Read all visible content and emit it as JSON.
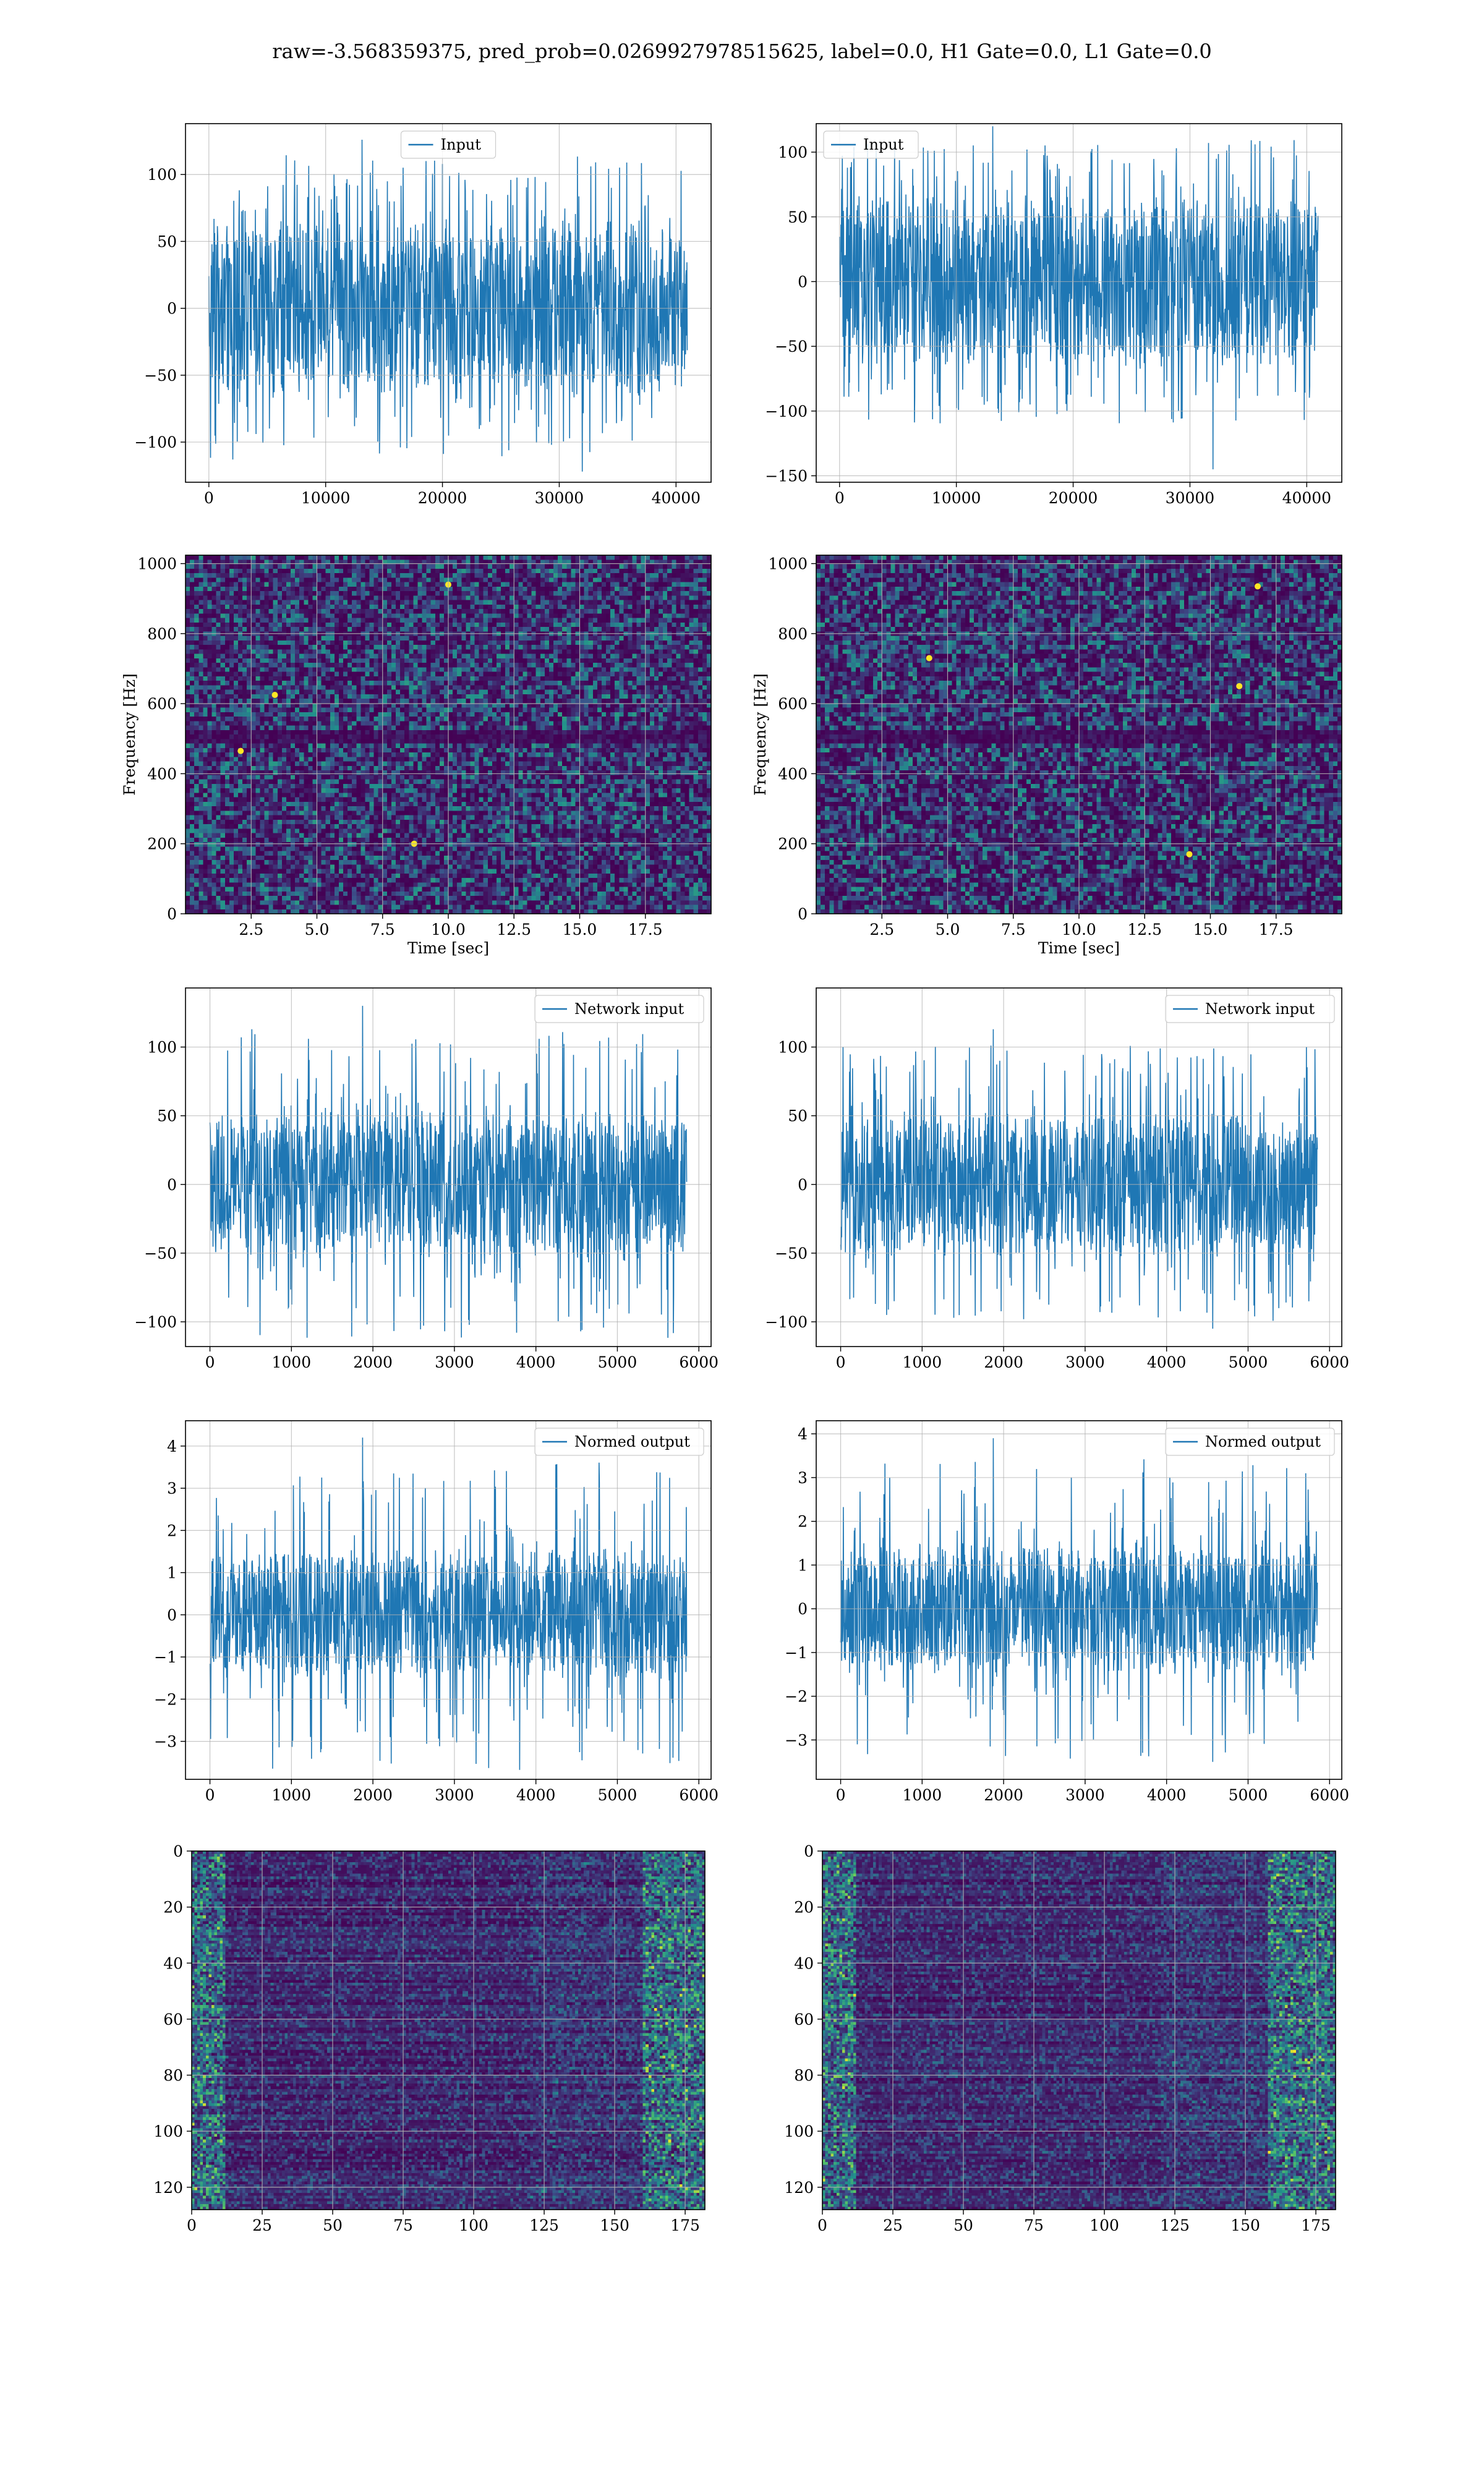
{
  "figure_title": "raw=-3.568359375, pred_prob=0.0269927978515625, label=0.0, H1 Gate=0.0, L1 Gate=0.0",
  "colors": {
    "line": "#1f77b4",
    "grid": "#b0b0b0",
    "viridis_low": "#440154",
    "viridis_mid": "#21918c",
    "viridis_high": "#fde725"
  },
  "chart_data": [
    {
      "type": "line",
      "id": "input-h1",
      "legend": "Input",
      "legend_loc": "upper center",
      "xlabel": "",
      "ylabel": "",
      "xlim": [
        -2000,
        43000
      ],
      "ylim": [
        -130,
        138
      ],
      "n_points": 40960,
      "xticks": [
        0,
        10000,
        20000,
        30000,
        40000
      ],
      "yticks": [
        -100,
        -50,
        0,
        50,
        100
      ],
      "envelope": {
        "typical": [
          -70,
          70
        ],
        "max": 126,
        "min": -122
      }
    },
    {
      "type": "line",
      "id": "input-l1",
      "legend": "Input",
      "legend_loc": "upper left",
      "xlabel": "",
      "ylabel": "",
      "xlim": [
        -2000,
        43000
      ],
      "ylim": [
        -155,
        122
      ],
      "n_points": 40960,
      "xticks": [
        0,
        10000,
        20000,
        30000,
        40000
      ],
      "yticks": [
        -150,
        -100,
        -50,
        0,
        50,
        100
      ],
      "envelope": {
        "typical": [
          -70,
          70
        ],
        "max": 120,
        "min": -145
      }
    },
    {
      "type": "heatmap",
      "id": "spectrogram-h1",
      "xlabel": "Time [sec]",
      "ylabel": "Frequency [Hz]",
      "xlim": [
        0,
        20
      ],
      "ylim": [
        0,
        1024
      ],
      "xticks": [
        2.5,
        5.0,
        7.5,
        10.0,
        12.5,
        15.0,
        17.5
      ],
      "yticks": [
        0,
        200,
        400,
        600,
        800,
        1000
      ],
      "colormap": "viridis",
      "dark_band_hz": [
        480,
        520
      ],
      "hot_spots": [
        [
          3.4,
          625
        ],
        [
          2.1,
          465
        ],
        [
          8.7,
          200
        ],
        [
          10.0,
          940
        ]
      ]
    },
    {
      "type": "heatmap",
      "id": "spectrogram-l1",
      "xlabel": "Time [sec]",
      "ylabel": "Frequency [Hz]",
      "xlim": [
        0,
        20
      ],
      "ylim": [
        0,
        1024
      ],
      "xticks": [
        2.5,
        5.0,
        7.5,
        10.0,
        12.5,
        15.0,
        17.5
      ],
      "yticks": [
        0,
        200,
        400,
        600,
        800,
        1000
      ],
      "colormap": "viridis",
      "dark_band_hz": [
        480,
        520
      ],
      "hot_spots": [
        [
          16.1,
          650
        ],
        [
          16.8,
          935
        ],
        [
          4.3,
          730
        ],
        [
          14.2,
          170
        ]
      ]
    },
    {
      "type": "line",
      "id": "network-input-h1",
      "legend": "Network input",
      "legend_loc": "upper right",
      "xlabel": "",
      "ylabel": "",
      "xlim": [
        -300,
        6150
      ],
      "ylim": [
        -118,
        143
      ],
      "n_points": 5850,
      "xticks": [
        0,
        1000,
        2000,
        3000,
        4000,
        5000,
        6000
      ],
      "yticks": [
        -100,
        -50,
        0,
        50,
        100
      ],
      "envelope": {
        "typical": [
          -55,
          55
        ],
        "max": 130,
        "min": -106
      }
    },
    {
      "type": "line",
      "id": "network-input-l1",
      "legend": "Network input",
      "legend_loc": "upper right",
      "xlabel": "",
      "ylabel": "",
      "xlim": [
        -300,
        6150
      ],
      "ylim": [
        -118,
        143
      ],
      "n_points": 5850,
      "xticks": [
        0,
        1000,
        2000,
        3000,
        4000,
        5000,
        6000
      ],
      "yticks": [
        -100,
        -50,
        0,
        50,
        100
      ],
      "envelope": {
        "typical": [
          -55,
          55
        ],
        "max": 113,
        "min": -105
      }
    },
    {
      "type": "line",
      "id": "normed-output-h1",
      "legend": "Normed output",
      "legend_loc": "upper right",
      "xlabel": "",
      "ylabel": "",
      "xlim": [
        -300,
        6150
      ],
      "ylim": [
        -3.9,
        4.6
      ],
      "n_points": 5850,
      "xticks": [
        0,
        1000,
        2000,
        3000,
        4000,
        5000,
        6000
      ],
      "yticks": [
        -3,
        -2,
        -1,
        0,
        1,
        2,
        3,
        4
      ],
      "envelope": {
        "typical": [
          -1.6,
          1.6
        ],
        "max": 4.2,
        "min": -3.45
      }
    },
    {
      "type": "line",
      "id": "normed-output-l1",
      "legend": "Normed output",
      "legend_loc": "upper right",
      "xlabel": "",
      "ylabel": "",
      "xlim": [
        -300,
        6150
      ],
      "ylim": [
        -3.9,
        4.3
      ],
      "n_points": 5850,
      "xticks": [
        0,
        1000,
        2000,
        3000,
        4000,
        5000,
        6000
      ],
      "yticks": [
        -3,
        -2,
        -1,
        0,
        1,
        2,
        3,
        4
      ],
      "envelope": {
        "typical": [
          -1.6,
          1.6
        ],
        "max": 3.9,
        "min": -3.5
      }
    },
    {
      "type": "heatmap",
      "id": "feature-map-h1",
      "xlabel": "",
      "ylabel": "",
      "y_inverted": true,
      "xlim": [
        0,
        182
      ],
      "ylim": [
        0,
        128
      ],
      "xticks": [
        0,
        25,
        50,
        75,
        100,
        125,
        150,
        175
      ],
      "yticks": [
        0,
        20,
        40,
        60,
        80,
        100,
        120
      ],
      "colormap": "viridis",
      "active_columns": [
        [
          0,
          12
        ],
        [
          160,
          182
        ]
      ]
    },
    {
      "type": "heatmap",
      "id": "feature-map-l1",
      "xlabel": "",
      "ylabel": "",
      "y_inverted": true,
      "xlim": [
        0,
        182
      ],
      "ylim": [
        0,
        128
      ],
      "xticks": [
        0,
        25,
        50,
        75,
        100,
        125,
        150,
        175
      ],
      "yticks": [
        0,
        20,
        40,
        60,
        80,
        100,
        120
      ],
      "colormap": "viridis",
      "active_columns": [
        [
          0,
          12
        ],
        [
          158,
          182
        ]
      ]
    }
  ]
}
